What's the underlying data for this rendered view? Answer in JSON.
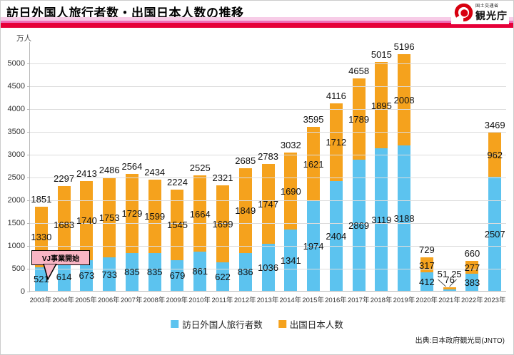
{
  "header": {
    "title": "訪日外国人旅行者数・出国日本人数の推移",
    "logo": {
      "ministry": "国土交通省",
      "agency": "観光庁",
      "logo_red": "#D7000F"
    },
    "band_colors": {
      "light_pink": "#F7CCE7",
      "magenta": "#F06EB8",
      "red": "#E60039"
    }
  },
  "chart_data": {
    "type": "bar",
    "stacked": true,
    "title": "訪日外国人旅行者数・出国日本人数の推移",
    "unit_label": "万人",
    "xlabel": "",
    "ylabel": "万人",
    "ylim": [
      0,
      5470
    ],
    "yticks": [
      0,
      500,
      1000,
      1500,
      2000,
      2500,
      3000,
      3500,
      4000,
      4500,
      5000
    ],
    "grid": true,
    "legend_position": "bottom",
    "categories": [
      "2003年",
      "2004年",
      "2005年",
      "2006年",
      "2007年",
      "2008年",
      "2009年",
      "2010年",
      "2011年",
      "2012年",
      "2013年",
      "2014年",
      "2015年",
      "2016年",
      "2017年",
      "2018年",
      "2019年",
      "2020年",
      "2021年",
      "2022年",
      "2023年"
    ],
    "series": [
      {
        "name": "訪日外国人旅行者数",
        "color": "#5CC3EF",
        "values": [
          521,
          614,
          673,
          733,
          835,
          835,
          679,
          861,
          622,
          836,
          1036,
          1341,
          1974,
          2404,
          2869,
          3119,
          3188,
          412,
          25,
          383,
          2507
        ]
      },
      {
        "name": "出国日本人数",
        "color": "#F5A21D",
        "values": [
          1330,
          1683,
          1740,
          1753,
          1729,
          1599,
          1545,
          1664,
          1699,
          1849,
          1747,
          1690,
          1621,
          1712,
          1789,
          1895,
          2008,
          317,
          51,
          277,
          962
        ]
      }
    ],
    "totals": [
      1851,
      2297,
      2413,
      2486,
      2564,
      2434,
      2224,
      2525,
      2321,
      2685,
      2783,
      3032,
      3595,
      4116,
      4658,
      5015,
      5196,
      729,
      76,
      660,
      3469
    ],
    "annotation": "VJ事業開始",
    "annotation_color": "#F9B5C4"
  },
  "footer": {
    "source": "出典:日本政府観光局(JNTO)"
  }
}
